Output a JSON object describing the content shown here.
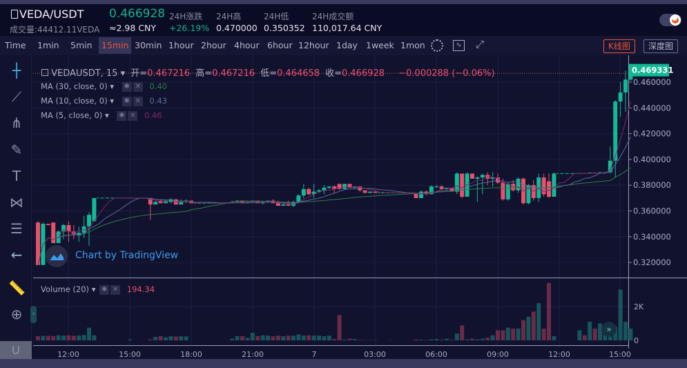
{
  "header": {
    "pair": "VEDA/USDT",
    "volume": "成交量:44412.11VEDA",
    "price": "0.466928",
    "price_cny": "≈2.98 CNY",
    "stats": [
      {
        "label": "24H涨跌",
        "value": "+26.19%",
        "color": "#10b48b"
      },
      {
        "label": "24H高",
        "value": "0.470000"
      },
      {
        "label": "24H低",
        "value": "0.350352"
      },
      {
        "label": "24H成交额",
        "value": "110,017.64 CNY"
      }
    ],
    "theme_toggle_icon": "moon-icon"
  },
  "toolbar": {
    "time_label": "Time",
    "intervals": [
      "1min",
      "5min",
      "15min",
      "30min",
      "1hour",
      "2hour",
      "4hour",
      "6hour",
      "12hour",
      "1day",
      "1week",
      "1mon"
    ],
    "active_interval": "15min",
    "icons": [
      "gear-icon",
      "indicator-icon",
      "fullscreen-icon"
    ],
    "kline_button": "K线图",
    "depth_button": "深度图"
  },
  "sidebar": {
    "tools": [
      "crosshair-icon",
      "trend-line-icon",
      "pitchfork-icon",
      "brush-icon",
      "text-icon",
      "pattern-icon",
      "fib-icon",
      "back-arrow-icon",
      "ruler-icon",
      "zoom-in-icon",
      "magnet-icon"
    ]
  },
  "legend": {
    "symbol": "VEDAUSDT, 15",
    "ohlc": [
      {
        "k": "开=",
        "v": "0.467216"
      },
      {
        "k": "高=",
        "v": "0.467216"
      },
      {
        "k": "低=",
        "v": "0.464658"
      },
      {
        "k": "收=",
        "v": "0.466928"
      }
    ],
    "change": "−0.000288 (−0.06%)",
    "mas": [
      {
        "label": "MA (30, close, 0)",
        "value": "0.40",
        "color": "#2e7d46",
        "period": 30
      },
      {
        "label": "MA (10, close, 0)",
        "value": "0.43",
        "color": "#5a6a9a",
        "period": 10
      },
      {
        "label": "MA (5, close, 0)",
        "value": "0.46",
        "color": "#7a2a66",
        "period": 5
      }
    ],
    "volume_label": "Volume (20)",
    "volume_value": "194.34"
  },
  "watermark": "Chart by TradingView",
  "chart_data": {
    "type": "candlestick",
    "interval": "15min",
    "up_color": "#12b996",
    "down_color": "#e8516e",
    "vol_up_color": "#17555c",
    "vol_down_color": "#6a2a4a",
    "price_ticks": [
      "0.460000",
      "0.440000",
      "0.420000",
      "0.400000",
      "0.380000",
      "0.360000",
      "0.340000",
      "0.320000"
    ],
    "last_price": "0.469331",
    "ylim": [
      0.3116,
      0.476
    ],
    "volume_ticks": [
      "2K",
      "0"
    ],
    "x_ticks": [
      "12:00",
      "15:00",
      "18:00",
      "21:00",
      "7",
      "03:00",
      "06:00",
      "09:00",
      "12:00",
      "15:00"
    ],
    "candles_ohlcv": [
      [
        0.351,
        0.352,
        0.318,
        0.318,
        250
      ],
      [
        0.318,
        0.351,
        0.318,
        0.35,
        270
      ],
      [
        0.35,
        0.35,
        0.349,
        0.349,
        270
      ],
      [
        0.351,
        0.351,
        0.335,
        0.335,
        250
      ],
      [
        0.335,
        0.345,
        0.335,
        0.344,
        300
      ],
      [
        0.344,
        0.35,
        0.338,
        0.349,
        280
      ],
      [
        0.349,
        0.352,
        0.336,
        0.344,
        300
      ],
      [
        0.344,
        0.349,
        0.338,
        0.342,
        270
      ],
      [
        0.341,
        0.348,
        0.336,
        0.343,
        290
      ],
      [
        0.343,
        0.356,
        0.339,
        0.348,
        320
      ],
      [
        0.348,
        0.359,
        0.333,
        0.357,
        750
      ],
      [
        0.352,
        0.37,
        0.352,
        0.37,
        300
      ],
      [
        0.37,
        0.37,
        0.37,
        0.37,
        0
      ],
      [
        0.37,
        0.37,
        0.37,
        0.37,
        0
      ],
      [
        0.37,
        0.37,
        0.37,
        0.37,
        0
      ],
      [
        0.37,
        0.37,
        0.37,
        0.37,
        0
      ],
      [
        0.37,
        0.37,
        0.37,
        0.37,
        0
      ],
      [
        0.37,
        0.37,
        0.37,
        0.37,
        0
      ],
      [
        0.37,
        0.37,
        0.37,
        0.37,
        60
      ],
      [
        0.37,
        0.37,
        0.37,
        0.37,
        0
      ],
      [
        0.37,
        0.37,
        0.37,
        0.37,
        0
      ],
      [
        0.37,
        0.37,
        0.37,
        0.37,
        0
      ],
      [
        0.37,
        0.37,
        0.353,
        0.365,
        60
      ],
      [
        0.365,
        0.368,
        0.365,
        0.367,
        200
      ],
      [
        0.368,
        0.369,
        0.366,
        0.366,
        250
      ],
      [
        0.366,
        0.368,
        0.366,
        0.368,
        180
      ],
      [
        0.367,
        0.37,
        0.366,
        0.369,
        240
      ],
      [
        0.369,
        0.369,
        0.365,
        0.365,
        230
      ],
      [
        0.365,
        0.369,
        0.365,
        0.367,
        240
      ],
      [
        0.367,
        0.369,
        0.366,
        0.368,
        230
      ],
      [
        0.368,
        0.368,
        0.366,
        0.366,
        0
      ],
      [
        0.366,
        0.366,
        0.366,
        0.366,
        0
      ],
      [
        0.366,
        0.366,
        0.366,
        0.366,
        0
      ],
      [
        0.366,
        0.366,
        0.366,
        0.366,
        0
      ],
      [
        0.366,
        0.366,
        0.366,
        0.366,
        0
      ],
      [
        0.366,
        0.366,
        0.366,
        0.366,
        0
      ],
      [
        0.366,
        0.366,
        0.366,
        0.366,
        0
      ],
      [
        0.366,
        0.366,
        0.366,
        0.366,
        0
      ],
      [
        0.366,
        0.368,
        0.366,
        0.367,
        100
      ],
      [
        0.367,
        0.368,
        0.366,
        0.368,
        250
      ],
      [
        0.368,
        0.368,
        0.366,
        0.366,
        250
      ],
      [
        0.366,
        0.368,
        0.366,
        0.367,
        150
      ],
      [
        0.367,
        0.368,
        0.366,
        0.368,
        450
      ],
      [
        0.368,
        0.368,
        0.366,
        0.366,
        250
      ],
      [
        0.366,
        0.368,
        0.365,
        0.367,
        300
      ],
      [
        0.367,
        0.368,
        0.366,
        0.368,
        280
      ],
      [
        0.368,
        0.369,
        0.366,
        0.366,
        240
      ],
      [
        0.366,
        0.368,
        0.364,
        0.364,
        280
      ],
      [
        0.364,
        0.366,
        0.364,
        0.365,
        240
      ],
      [
        0.365,
        0.368,
        0.364,
        0.364,
        280
      ],
      [
        0.364,
        0.368,
        0.363,
        0.367,
        280
      ],
      [
        0.367,
        0.373,
        0.366,
        0.372,
        350
      ],
      [
        0.372,
        0.381,
        0.37,
        0.377,
        280
      ],
      [
        0.377,
        0.378,
        0.372,
        0.373,
        300
      ],
      [
        0.373,
        0.381,
        0.37,
        0.375,
        280
      ],
      [
        0.375,
        0.377,
        0.374,
        0.376,
        280
      ],
      [
        0.376,
        0.38,
        0.373,
        0.378,
        240
      ],
      [
        0.378,
        0.379,
        0.377,
        0.379,
        280
      ],
      [
        0.379,
        0.38,
        0.374,
        0.377,
        80
      ],
      [
        0.381,
        0.381,
        0.376,
        0.377,
        1500
      ],
      [
        0.377,
        0.381,
        0.377,
        0.381,
        50
      ],
      [
        0.381,
        0.381,
        0.378,
        0.378,
        100
      ],
      [
        0.378,
        0.379,
        0.377,
        0.379,
        80
      ],
      [
        0.379,
        0.379,
        0.375,
        0.376,
        30
      ],
      [
        0.376,
        0.376,
        0.374,
        0.374,
        20
      ],
      [
        0.374,
        0.375,
        0.374,
        0.375,
        20
      ],
      [
        0.375,
        0.375,
        0.374,
        0.374,
        20
      ],
      [
        0.374,
        0.374,
        0.374,
        0.374,
        0
      ],
      [
        0.374,
        0.374,
        0.374,
        0.374,
        0
      ],
      [
        0.374,
        0.374,
        0.374,
        0.374,
        10
      ],
      [
        0.374,
        0.374,
        0.374,
        0.374,
        0
      ],
      [
        0.374,
        0.374,
        0.374,
        0.374,
        0
      ],
      [
        0.374,
        0.374,
        0.374,
        0.374,
        0
      ],
      [
        0.374,
        0.374,
        0.374,
        0.374,
        0
      ],
      [
        0.374,
        0.374,
        0.37,
        0.37,
        60
      ],
      [
        0.37,
        0.376,
        0.37,
        0.375,
        40
      ],
      [
        0.375,
        0.376,
        0.372,
        0.373,
        30
      ],
      [
        0.373,
        0.38,
        0.373,
        0.379,
        60
      ],
      [
        0.379,
        0.38,
        0.378,
        0.379,
        80
      ],
      [
        0.379,
        0.38,
        0.376,
        0.377,
        40
      ],
      [
        0.377,
        0.378,
        0.375,
        0.378,
        100
      ],
      [
        0.378,
        0.378,
        0.375,
        0.375,
        40
      ],
      [
        0.375,
        0.39,
        0.373,
        0.389,
        400
      ],
      [
        0.389,
        0.389,
        0.37,
        0.371,
        880
      ],
      [
        0.371,
        0.39,
        0.371,
        0.389,
        60
      ],
      [
        0.389,
        0.389,
        0.385,
        0.385,
        100
      ],
      [
        0.385,
        0.387,
        0.367,
        0.386,
        60
      ],
      [
        0.386,
        0.389,
        0.373,
        0.388,
        100
      ],
      [
        0.388,
        0.39,
        0.38,
        0.385,
        160
      ],
      [
        0.385,
        0.39,
        0.379,
        0.386,
        300
      ],
      [
        0.386,
        0.389,
        0.381,
        0.382,
        600
      ],
      [
        0.382,
        0.385,
        0.368,
        0.369,
        600
      ],
      [
        0.369,
        0.382,
        0.368,
        0.381,
        750
      ],
      [
        0.381,
        0.384,
        0.375,
        0.376,
        700
      ],
      [
        0.376,
        0.386,
        0.374,
        0.385,
        700
      ],
      [
        0.385,
        0.386,
        0.365,
        0.366,
        1200
      ],
      [
        0.366,
        0.381,
        0.365,
        0.38,
        1400
      ],
      [
        0.38,
        0.384,
        0.368,
        0.37,
        1700
      ],
      [
        0.37,
        0.389,
        0.367,
        0.386,
        2200
      ],
      [
        0.386,
        0.389,
        0.371,
        0.373,
        700
      ],
      [
        0.383,
        0.389,
        0.37,
        0.371,
        3400
      ],
      [
        0.371,
        0.39,
        0.371,
        0.389,
        250
      ],
      [
        0.389,
        0.389,
        0.389,
        0.389,
        0
      ],
      [
        0.389,
        0.389,
        0.389,
        0.389,
        0
      ],
      [
        0.389,
        0.389,
        0.389,
        0.389,
        0
      ],
      [
        0.389,
        0.389,
        0.389,
        0.389,
        0
      ],
      [
        0.389,
        0.3895,
        0.389,
        0.3895,
        600
      ],
      [
        0.3895,
        0.3895,
        0.389,
        0.389,
        300
      ],
      [
        0.389,
        0.39,
        0.389,
        0.3898,
        1100
      ],
      [
        0.3898,
        0.3898,
        0.389,
        0.3892,
        700
      ],
      [
        0.3892,
        0.3902,
        0.389,
        0.39,
        1000
      ],
      [
        0.39,
        0.3903,
        0.3895,
        0.39,
        700
      ],
      [
        0.39,
        0.41,
        0.389,
        0.399,
        700
      ],
      [
        0.399,
        0.446,
        0.386,
        0.445,
        800
      ],
      [
        0.445,
        0.46,
        0.433,
        0.452,
        3000
      ],
      [
        0.452,
        0.469,
        0.437,
        0.462,
        1100
      ],
      [
        0.462,
        0.4693,
        0.461,
        0.4693,
        700
      ]
    ]
  }
}
